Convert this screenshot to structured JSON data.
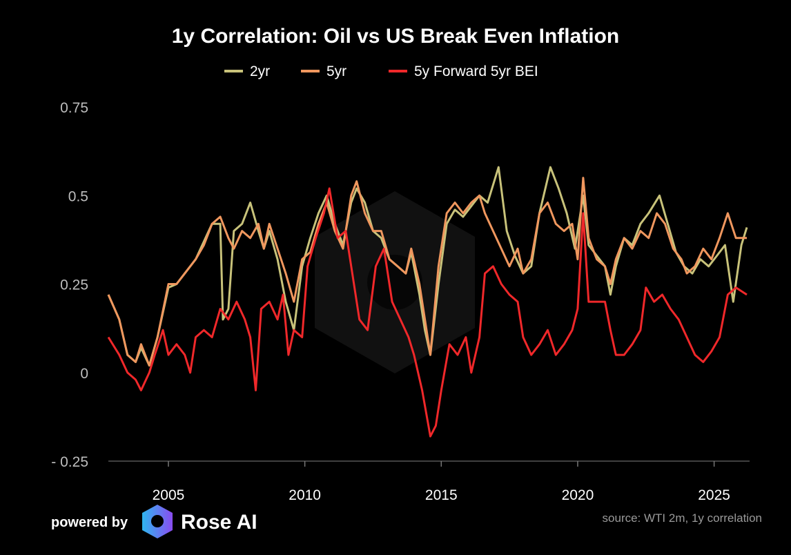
{
  "chart_data": {
    "type": "line",
    "title": "1y Correlation: Oil vs US Break Even Inflation",
    "xlabel": "",
    "ylabel": "",
    "xlim": [
      2002.8,
      2026.3
    ],
    "ylim": [
      -0.25,
      0.75
    ],
    "y_ticks": [
      -0.25,
      0,
      0.25,
      0.5,
      0.75
    ],
    "y_tick_labels": [
      "- 0.25",
      "0",
      "0.25",
      "0.5",
      "0.75"
    ],
    "x_ticks": [
      2005,
      2010,
      2015,
      2020,
      2025
    ],
    "x_tick_labels": [
      "2005",
      "2010",
      "2015",
      "2020",
      "2025"
    ],
    "grid": false,
    "legend_position": "top-center",
    "series": [
      {
        "name": "2yr",
        "color": "#c8c27a",
        "x": [
          2002.8,
          2003.2,
          2003.5,
          2003.8,
          2004.0,
          2004.3,
          2004.6,
          2005.0,
          2005.3,
          2005.6,
          2006.0,
          2006.3,
          2006.6,
          2006.9,
          2007.0,
          2007.2,
          2007.4,
          2007.7,
          2008.0,
          2008.3,
          2008.5,
          2008.7,
          2009.0,
          2009.3,
          2009.6,
          2009.9,
          2010.2,
          2010.5,
          2010.8,
          2011.1,
          2011.4,
          2011.7,
          2011.9,
          2012.2,
          2012.5,
          2012.8,
          2013.1,
          2013.4,
          2013.7,
          2013.9,
          2014.2,
          2014.4,
          2014.6,
          2014.9,
          2015.2,
          2015.5,
          2015.8,
          2016.1,
          2016.4,
          2016.7,
          2017.1,
          2017.4,
          2017.7,
          2018.0,
          2018.3,
          2018.6,
          2019.0,
          2019.3,
          2019.6,
          2019.9,
          2020.2,
          2020.4,
          2020.7,
          2021.0,
          2021.2,
          2021.4,
          2021.7,
          2022.0,
          2022.3,
          2022.6,
          2023.0,
          2023.3,
          2023.6,
          2023.9,
          2024.2,
          2024.5,
          2024.8,
          2025.1,
          2025.4,
          2025.7,
          2026.0,
          2026.2
        ],
        "values": [
          0.22,
          0.15,
          0.05,
          0.03,
          0.07,
          0.02,
          0.1,
          0.24,
          0.25,
          0.28,
          0.32,
          0.37,
          0.42,
          0.42,
          0.15,
          0.18,
          0.4,
          0.42,
          0.48,
          0.4,
          0.35,
          0.4,
          0.32,
          0.2,
          0.12,
          0.3,
          0.38,
          0.45,
          0.5,
          0.42,
          0.36,
          0.48,
          0.52,
          0.48,
          0.4,
          0.38,
          0.32,
          0.3,
          0.28,
          0.34,
          0.22,
          0.12,
          0.05,
          0.25,
          0.42,
          0.46,
          0.44,
          0.47,
          0.5,
          0.48,
          0.58,
          0.4,
          0.33,
          0.28,
          0.3,
          0.45,
          0.58,
          0.52,
          0.45,
          0.35,
          0.5,
          0.36,
          0.33,
          0.3,
          0.22,
          0.3,
          0.38,
          0.36,
          0.42,
          0.45,
          0.5,
          0.42,
          0.34,
          0.3,
          0.28,
          0.32,
          0.3,
          0.33,
          0.36,
          0.2,
          0.36,
          0.41
        ]
      },
      {
        "name": "5yr",
        "color": "#f0975e",
        "x": [
          2002.8,
          2003.2,
          2003.5,
          2003.8,
          2004.0,
          2004.3,
          2004.6,
          2005.0,
          2005.3,
          2005.6,
          2006.0,
          2006.3,
          2006.6,
          2006.9,
          2007.2,
          2007.4,
          2007.7,
          2008.0,
          2008.3,
          2008.5,
          2008.7,
          2009.0,
          2009.3,
          2009.6,
          2009.9,
          2010.2,
          2010.5,
          2010.8,
          2011.1,
          2011.4,
          2011.7,
          2011.9,
          2012.2,
          2012.5,
          2012.8,
          2013.1,
          2013.4,
          2013.7,
          2013.9,
          2014.2,
          2014.4,
          2014.6,
          2014.9,
          2015.2,
          2015.5,
          2015.8,
          2016.1,
          2016.4,
          2016.6,
          2016.9,
          2017.2,
          2017.5,
          2017.8,
          2018.0,
          2018.3,
          2018.6,
          2018.9,
          2019.2,
          2019.5,
          2019.8,
          2020.0,
          2020.2,
          2020.4,
          2020.7,
          2021.0,
          2021.2,
          2021.4,
          2021.7,
          2022.0,
          2022.3,
          2022.6,
          2022.9,
          2023.2,
          2023.5,
          2023.8,
          2024.0,
          2024.3,
          2024.6,
          2024.9,
          2025.2,
          2025.5,
          2025.8,
          2026.2
        ],
        "values": [
          0.22,
          0.15,
          0.05,
          0.03,
          0.08,
          0.02,
          0.1,
          0.25,
          0.25,
          0.28,
          0.32,
          0.36,
          0.42,
          0.44,
          0.38,
          0.35,
          0.4,
          0.38,
          0.42,
          0.35,
          0.42,
          0.35,
          0.28,
          0.2,
          0.32,
          0.34,
          0.42,
          0.48,
          0.4,
          0.35,
          0.5,
          0.54,
          0.45,
          0.4,
          0.4,
          0.32,
          0.3,
          0.28,
          0.35,
          0.25,
          0.15,
          0.05,
          0.3,
          0.45,
          0.48,
          0.45,
          0.48,
          0.5,
          0.45,
          0.4,
          0.35,
          0.3,
          0.35,
          0.28,
          0.32,
          0.45,
          0.48,
          0.42,
          0.4,
          0.42,
          0.32,
          0.55,
          0.38,
          0.32,
          0.3,
          0.25,
          0.32,
          0.38,
          0.35,
          0.4,
          0.38,
          0.45,
          0.42,
          0.35,
          0.32,
          0.28,
          0.3,
          0.35,
          0.32,
          0.38,
          0.45,
          0.38,
          0.38
        ]
      },
      {
        "name": "5y Forward 5yr BEI",
        "color": "#f0282a",
        "x": [
          2002.8,
          2003.2,
          2003.5,
          2003.8,
          2004.0,
          2004.3,
          2004.5,
          2004.8,
          2005.0,
          2005.3,
          2005.6,
          2005.8,
          2006.0,
          2006.3,
          2006.6,
          2006.9,
          2007.2,
          2007.5,
          2007.8,
          2008.0,
          2008.2,
          2008.4,
          2008.7,
          2009.0,
          2009.2,
          2009.4,
          2009.6,
          2009.9,
          2010.1,
          2010.4,
          2010.7,
          2010.9,
          2011.2,
          2011.5,
          2011.8,
          2012.0,
          2012.3,
          2012.6,
          2012.9,
          2013.2,
          2013.5,
          2013.8,
          2014.0,
          2014.3,
          2014.6,
          2014.8,
          2015.0,
          2015.3,
          2015.6,
          2015.9,
          2016.1,
          2016.4,
          2016.6,
          2016.9,
          2017.2,
          2017.5,
          2017.8,
          2018.0,
          2018.3,
          2018.6,
          2018.9,
          2019.2,
          2019.5,
          2019.8,
          2020.0,
          2020.2,
          2020.4,
          2020.7,
          2021.0,
          2021.2,
          2021.4,
          2021.7,
          2022.0,
          2022.3,
          2022.5,
          2022.8,
          2023.1,
          2023.4,
          2023.7,
          2024.0,
          2024.3,
          2024.6,
          2024.9,
          2025.2,
          2025.5,
          2025.8,
          2026.2
        ],
        "values": [
          0.1,
          0.05,
          0.0,
          -0.02,
          -0.05,
          0.0,
          0.05,
          0.12,
          0.05,
          0.08,
          0.05,
          0.0,
          0.1,
          0.12,
          0.1,
          0.18,
          0.15,
          0.2,
          0.15,
          0.1,
          -0.05,
          0.18,
          0.2,
          0.15,
          0.22,
          0.05,
          0.12,
          0.1,
          0.3,
          0.38,
          0.45,
          0.52,
          0.38,
          0.4,
          0.25,
          0.15,
          0.12,
          0.3,
          0.35,
          0.2,
          0.15,
          0.1,
          0.05,
          -0.05,
          -0.18,
          -0.15,
          -0.05,
          0.08,
          0.05,
          0.1,
          0.0,
          0.1,
          0.28,
          0.3,
          0.25,
          0.22,
          0.2,
          0.1,
          0.05,
          0.08,
          0.12,
          0.05,
          0.08,
          0.12,
          0.18,
          0.45,
          0.2,
          0.2,
          0.2,
          0.12,
          0.05,
          0.05,
          0.08,
          0.12,
          0.24,
          0.2,
          0.22,
          0.18,
          0.15,
          0.1,
          0.05,
          0.03,
          0.06,
          0.1,
          0.22,
          0.24,
          0.22
        ]
      }
    ]
  },
  "footer": {
    "powered_by": "powered by",
    "brand": "Rose AI",
    "source": "source: WTI 2m, 1y correlation"
  }
}
